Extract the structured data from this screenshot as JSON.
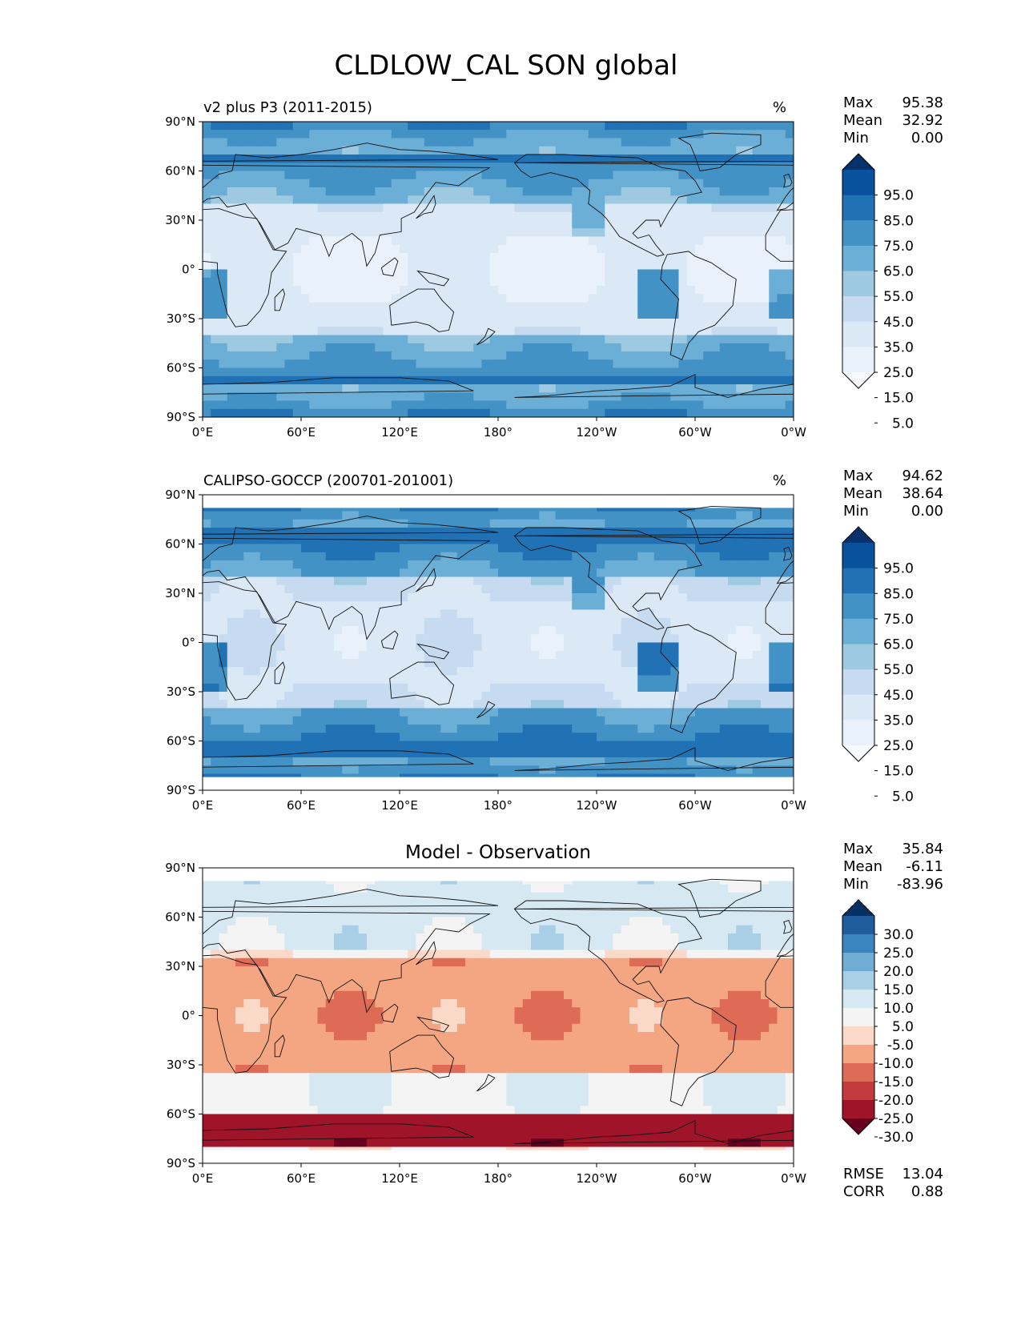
{
  "title": "CLDLOW_CAL SON global",
  "lat_ticks": [
    "90°N",
    "60°N",
    "30°N",
    "0°",
    "30°S",
    "60°S",
    "90°S"
  ],
  "lon_ticks": [
    "0°E",
    "60°E",
    "120°E",
    "180°",
    "120°W",
    "60°W",
    "0°W"
  ],
  "panels": [
    {
      "title": "v2 plus P3 (2011-2015)",
      "units": "%",
      "stats": [
        {
          "label": "Max",
          "value": "95.38"
        },
        {
          "label": "Mean",
          "value": "32.92"
        },
        {
          "label": "Min",
          "value": "0.00"
        }
      ],
      "colorbar": {
        "labels": [
          "95.0",
          "85.0",
          "75.0",
          "65.0",
          "55.0",
          "45.0",
          "35.0",
          "25.0",
          "15.0",
          "5.0"
        ],
        "colors": [
          "#08306b",
          "#08519c",
          "#2171b5",
          "#4292c6",
          "#6baed6",
          "#9ecae1",
          "#c6dbef",
          "#dbe9f6",
          "#e9f2fa",
          "#f7fbff"
        ]
      },
      "footer": []
    },
    {
      "title": "CALIPSO-GOCCP (200701-201001)",
      "units": "%",
      "stats": [
        {
          "label": "Max",
          "value": "94.62"
        },
        {
          "label": "Mean",
          "value": "38.64"
        },
        {
          "label": "Min",
          "value": "0.00"
        }
      ],
      "colorbar": {
        "labels": [
          "95.0",
          "85.0",
          "75.0",
          "65.0",
          "55.0",
          "45.0",
          "35.0",
          "25.0",
          "15.0",
          "5.0"
        ],
        "colors": [
          "#08306b",
          "#08519c",
          "#2171b5",
          "#4292c6",
          "#6baed6",
          "#9ecae1",
          "#c6dbef",
          "#dbe9f6",
          "#e9f2fa",
          "#f7fbff"
        ]
      },
      "footer": []
    },
    {
      "title": "Model - Observation",
      "units": "",
      "stats": [
        {
          "label": "Max",
          "value": "35.84"
        },
        {
          "label": "Mean",
          "value": "-6.11"
        },
        {
          "label": "Min",
          "value": "-83.96"
        }
      ],
      "colorbar": {
        "labels": [
          "30.0",
          "25.0",
          "20.0",
          "15.0",
          "10.0",
          "5.0",
          "-5.0",
          "-10.0",
          "-15.0",
          "-20.0",
          "-25.0",
          "-30.0"
        ],
        "colors": [
          "#053061",
          "#1f5d9e",
          "#3a85c0",
          "#6fadd4",
          "#a8cfe5",
          "#d6e8f2",
          "#f4f4f4",
          "#fbd9c8",
          "#f4a683",
          "#de6b56",
          "#c43a3d",
          "#a0142a",
          "#67001f"
        ]
      },
      "footer": [
        {
          "label": "RMSE",
          "value": "13.04"
        },
        {
          "label": "CORR",
          "value": "0.88"
        }
      ]
    }
  ]
}
